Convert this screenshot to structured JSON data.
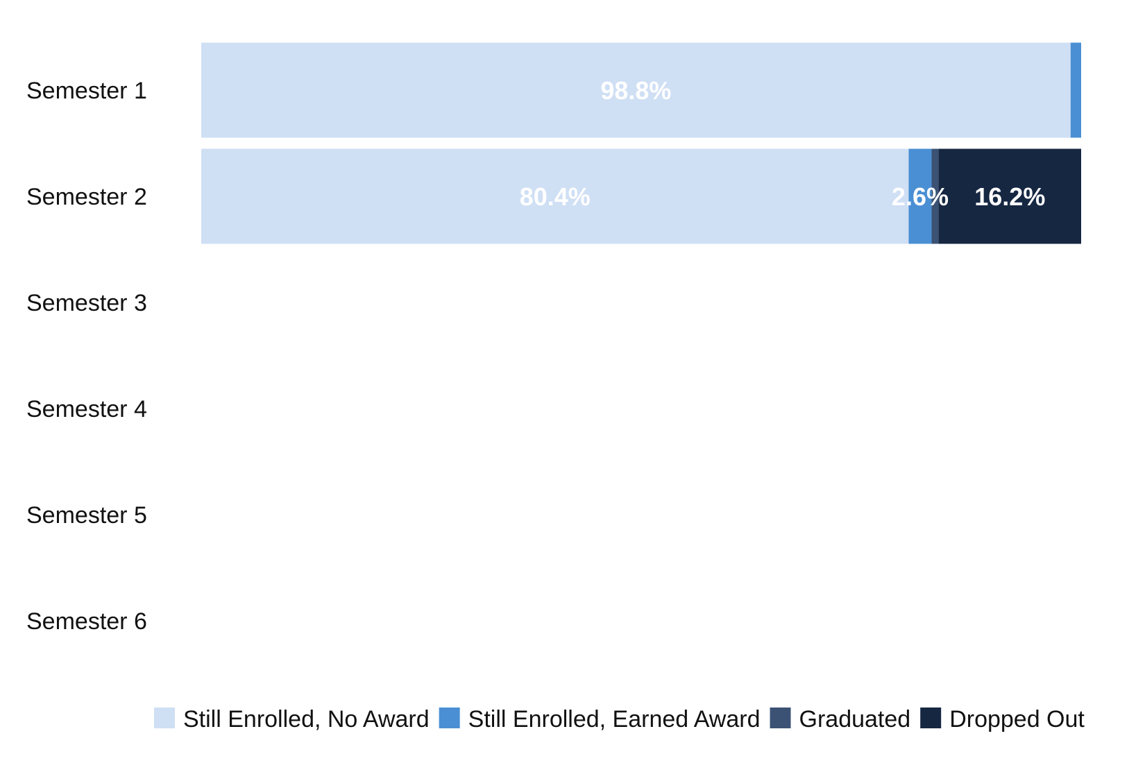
{
  "chart_data": {
    "type": "bar",
    "orientation": "horizontal",
    "stacked": true,
    "categories": [
      "Semester 1",
      "Semester 2",
      "Semester 3",
      "Semester 4",
      "Semester 5",
      "Semester 6"
    ],
    "series": [
      {
        "name": "Still Enrolled, No Award",
        "color": "#cfdff4",
        "values": [
          98.8,
          80.4,
          null,
          null,
          null,
          null
        ],
        "labels": [
          "98.8%",
          "80.4%",
          "",
          "",
          "",
          ""
        ]
      },
      {
        "name": "Still Enrolled, Earned Award",
        "color": "#4a8fd4",
        "values": [
          1.2,
          2.6,
          null,
          null,
          null,
          null
        ],
        "labels": [
          "",
          "2.6%",
          "",
          "",
          "",
          ""
        ]
      },
      {
        "name": "Graduated",
        "color": "#3b5275",
        "values": [
          0,
          0.8,
          null,
          null,
          null,
          null
        ],
        "labels": [
          "",
          "",
          "",
          "",
          "",
          ""
        ]
      },
      {
        "name": "Dropped Out",
        "color": "#162742",
        "values": [
          0,
          16.2,
          null,
          null,
          null,
          null
        ],
        "labels": [
          "",
          "16.2%",
          "",
          "",
          "",
          ""
        ]
      }
    ],
    "xlim": [
      0,
      100
    ],
    "grid": false,
    "legend_position": "bottom"
  }
}
